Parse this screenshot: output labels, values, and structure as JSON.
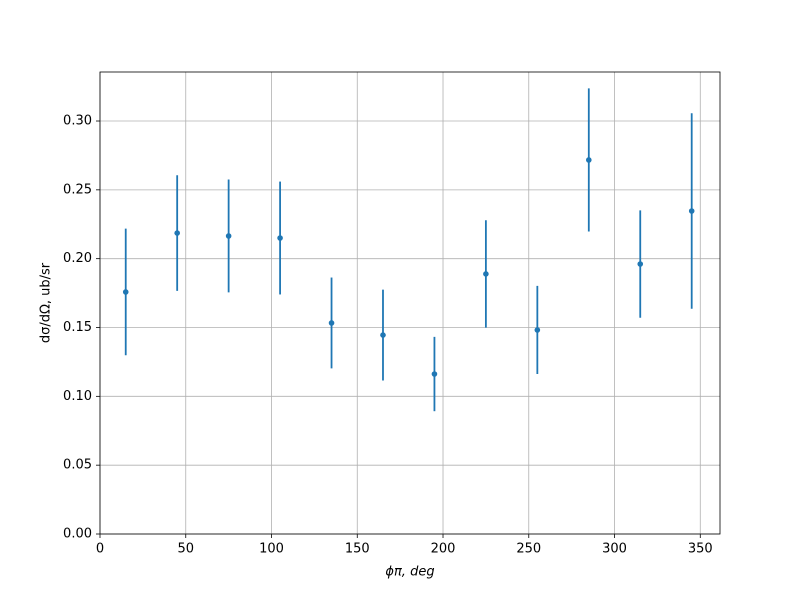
{
  "chart_data": {
    "type": "errorbar",
    "xlabel": "ϕπ, deg",
    "ylabel": "dσ/dΩ, ub/sr",
    "x": [
      15,
      45,
      75,
      105,
      135,
      165,
      195,
      225,
      255,
      285,
      315,
      345
    ],
    "series": [
      {
        "color": "#1f77b4",
        "values": [
          0.1758,
          0.2186,
          0.2165,
          0.215,
          0.1533,
          0.1445,
          0.1162,
          0.1889,
          0.1482,
          0.2717,
          0.1961,
          0.2346
        ],
        "errors": [
          0.046,
          0.042,
          0.041,
          0.041,
          0.033,
          0.033,
          0.027,
          0.039,
          0.032,
          0.052,
          0.039,
          0.071
        ]
      }
    ],
    "xlim": [
      0,
      361.5
    ],
    "ylim": [
      0,
      0.3356
    ],
    "xticks": [
      0,
      50,
      100,
      150,
      200,
      250,
      300,
      350
    ],
    "yticks": [
      {
        "value": 0,
        "label": "0.00"
      },
      0.05,
      {
        "value": 0.1,
        "label": "0.10"
      },
      0.15,
      {
        "value": 0.2,
        "label": "0.20"
      },
      0.25,
      {
        "value": 0.3,
        "label": "0.30"
      }
    ],
    "grid": true
  }
}
